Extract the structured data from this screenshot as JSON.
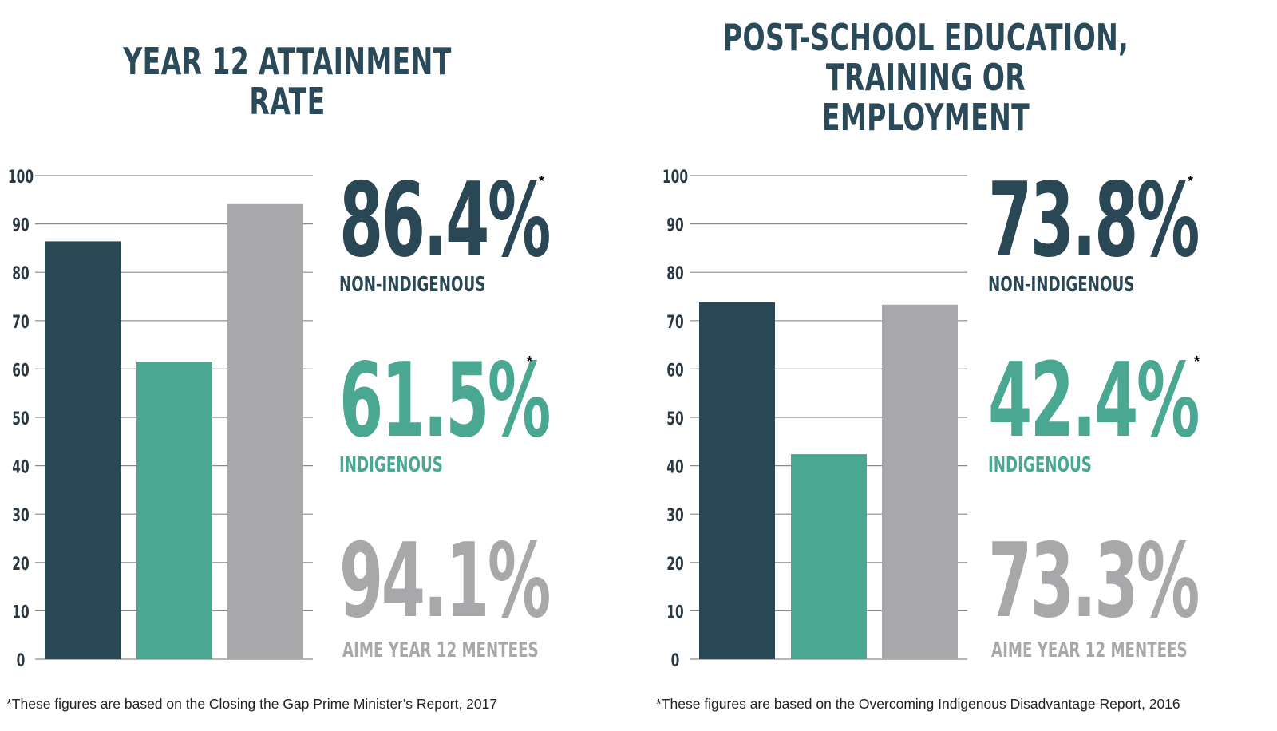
{
  "colors": {
    "non_indigenous": "#2a4756",
    "indigenous": "#4aa892",
    "aime": "#a8a8aa",
    "gridline": "#8c8c8c"
  },
  "chart_data": [
    {
      "type": "bar",
      "title": "YEAR 12 ATTAINMENT RATE",
      "title_lines": [
        "YEAR 12 ATTAINMENT RATE"
      ],
      "categories": [
        "NON-INDIGENOUS",
        "INDIGENOUS",
        "AIME YEAR 12 MENTEES"
      ],
      "values": [
        86.4,
        61.5,
        94.1
      ],
      "value_labels": [
        "86.4%",
        "61.5%",
        "94.1%"
      ],
      "asterisk": [
        "*",
        "*",
        ""
      ],
      "ylim": [
        0,
        100
      ],
      "yticks": [
        "100",
        "90",
        "80",
        "70",
        "60",
        "50",
        "40",
        "30",
        "20",
        "10",
        "0"
      ],
      "grid": true,
      "footnote": "*These figures are based on the Closing the Gap Prime Minister’s Report, 2017"
    },
    {
      "type": "bar",
      "title": "POST-SCHOOL EDUCATION, TRAINING OR EMPLOYMENT",
      "title_lines": [
        "POST-SCHOOL EDUCATION,",
        "TRAINING OR EMPLOYMENT"
      ],
      "categories": [
        "NON-INDIGENOUS",
        "INDIGENOUS",
        "AIME YEAR 12 MENTEES"
      ],
      "values": [
        73.8,
        42.4,
        73.3
      ],
      "value_labels": [
        "73.8%",
        "42.4%",
        "73.3%"
      ],
      "asterisk": [
        "*",
        "*",
        ""
      ],
      "ylim": [
        0,
        100
      ],
      "yticks": [
        "100",
        "90",
        "80",
        "70",
        "60",
        "50",
        "40",
        "30",
        "20",
        "10",
        "0"
      ],
      "grid": true,
      "footnote": "*These figures are based on the Overcoming Indigenous Disadvantage Report, 2016"
    }
  ]
}
